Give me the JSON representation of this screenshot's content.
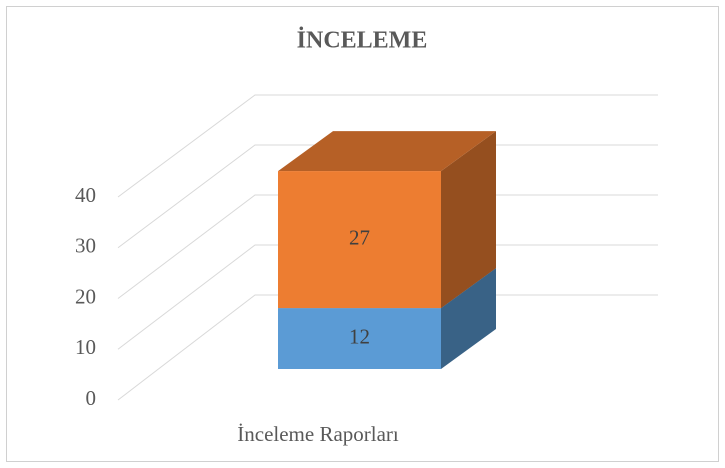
{
  "chart_data": {
    "type": "bar3d_stacked",
    "title": "İNCELEME",
    "categories": [
      "İnceleme Raporları"
    ],
    "series": [
      {
        "name": null,
        "color": "#5b9bd5",
        "values": [
          12
        ]
      },
      {
        "name": null,
        "color": "#ed7d31",
        "values": [
          27
        ]
      }
    ],
    "ylim": [
      0,
      40
    ],
    "yticks": [
      0,
      10,
      20,
      30,
      40
    ],
    "grid": true
  }
}
